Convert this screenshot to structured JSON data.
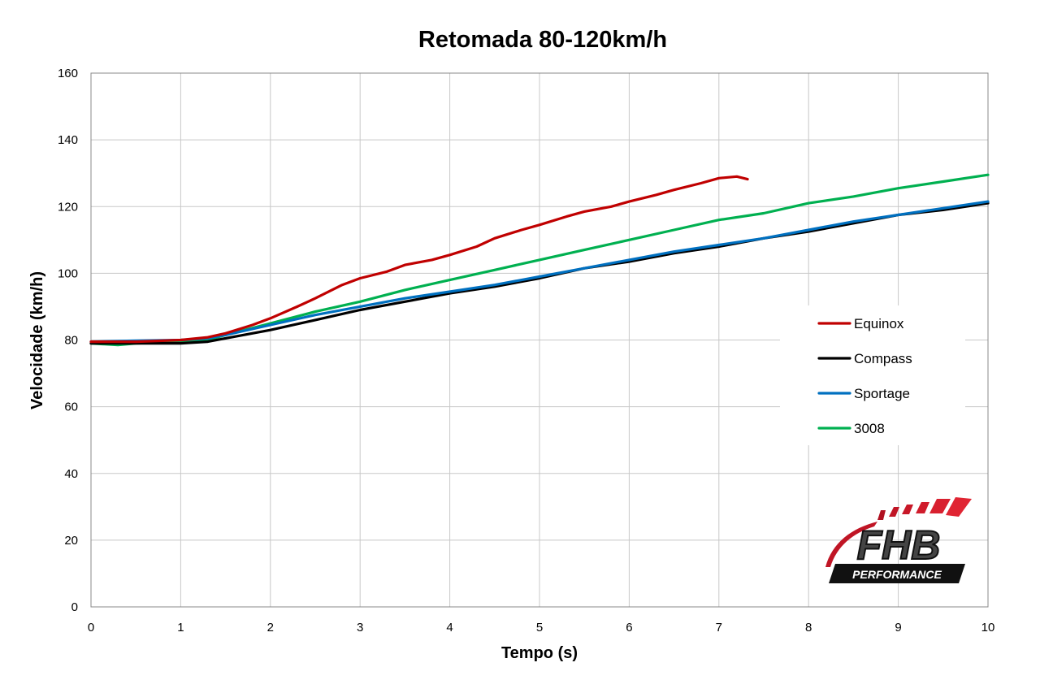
{
  "chart_data": {
    "type": "line",
    "title": "Retomada 80-120km/h",
    "xlabel": "Tempo (s)",
    "ylabel": "Velocidade (km/h)",
    "xlim": [
      0,
      10
    ],
    "ylim": [
      0,
      160
    ],
    "x_ticks": [
      "0",
      "1",
      "2",
      "3",
      "4",
      "5",
      "6",
      "7",
      "8",
      "9",
      "10"
    ],
    "y_ticks": [
      "0",
      "20",
      "40",
      "60",
      "80",
      "100",
      "120",
      "140",
      "160"
    ],
    "grid": true,
    "legend_position": "right",
    "series": [
      {
        "name": "Equinox",
        "color": "#c00000",
        "x": [
          0,
          0.5,
          1.0,
          1.3,
          1.5,
          1.8,
          2.0,
          2.3,
          2.5,
          2.8,
          3.0,
          3.3,
          3.5,
          3.8,
          4.0,
          4.3,
          4.5,
          4.8,
          5.0,
          5.3,
          5.5,
          5.8,
          6.0,
          6.3,
          6.5,
          6.8,
          7.0,
          7.2,
          7.32
        ],
        "y": [
          79.5,
          79.5,
          80.0,
          80.8,
          82.0,
          84.5,
          86.5,
          90.0,
          92.5,
          96.5,
          98.5,
          100.5,
          102.5,
          104.0,
          105.5,
          108.0,
          110.5,
          113.0,
          114.5,
          117.0,
          118.5,
          120.0,
          121.5,
          123.5,
          125.0,
          127.0,
          128.5,
          129.0,
          128.2
        ]
      },
      {
        "name": "Compass",
        "color": "#000000",
        "x": [
          0,
          0.5,
          1.0,
          1.3,
          1.5,
          2.0,
          2.5,
          3.0,
          3.5,
          4.0,
          4.5,
          5.0,
          5.5,
          6.0,
          6.5,
          7.0,
          7.5,
          8.0,
          8.5,
          9.0,
          9.5,
          10.0
        ],
        "y": [
          79.0,
          79.0,
          79.0,
          79.5,
          80.5,
          83.0,
          86.0,
          89.0,
          91.5,
          94.0,
          96.0,
          98.5,
          101.5,
          103.5,
          106.0,
          108.0,
          110.5,
          112.5,
          115.0,
          117.5,
          119.0,
          121.0
        ]
      },
      {
        "name": "Sportage",
        "color": "#0070c0",
        "x": [
          0,
          0.5,
          1.0,
          1.3,
          1.5,
          2.0,
          2.5,
          3.0,
          3.5,
          4.0,
          4.5,
          5.0,
          5.5,
          6.0,
          6.5,
          7.0,
          7.5,
          8.0,
          8.5,
          9.0,
          9.5,
          10.0
        ],
        "y": [
          79.5,
          79.8,
          80.0,
          80.5,
          81.5,
          84.5,
          87.5,
          90.0,
          92.5,
          94.5,
          96.5,
          99.0,
          101.5,
          104.0,
          106.5,
          108.5,
          110.5,
          113.0,
          115.5,
          117.5,
          119.5,
          121.5
        ]
      },
      {
        "name": "3008",
        "color": "#00b050",
        "x": [
          0,
          0.3,
          0.5,
          1.0,
          1.3,
          1.5,
          2.0,
          2.5,
          3.0,
          3.5,
          4.0,
          4.5,
          5.0,
          5.5,
          6.0,
          6.5,
          7.0,
          7.5,
          8.0,
          8.5,
          9.0,
          9.5,
          10.0
        ],
        "y": [
          79.0,
          78.5,
          79.0,
          79.5,
          80.0,
          81.5,
          85.0,
          88.5,
          91.5,
          95.0,
          98.0,
          101.0,
          104.0,
          107.0,
          110.0,
          113.0,
          116.0,
          118.0,
          121.0,
          123.0,
          125.5,
          127.5,
          129.5
        ]
      }
    ]
  },
  "logo": {
    "text": "FHB",
    "subtext": "PERFORMANCE"
  }
}
